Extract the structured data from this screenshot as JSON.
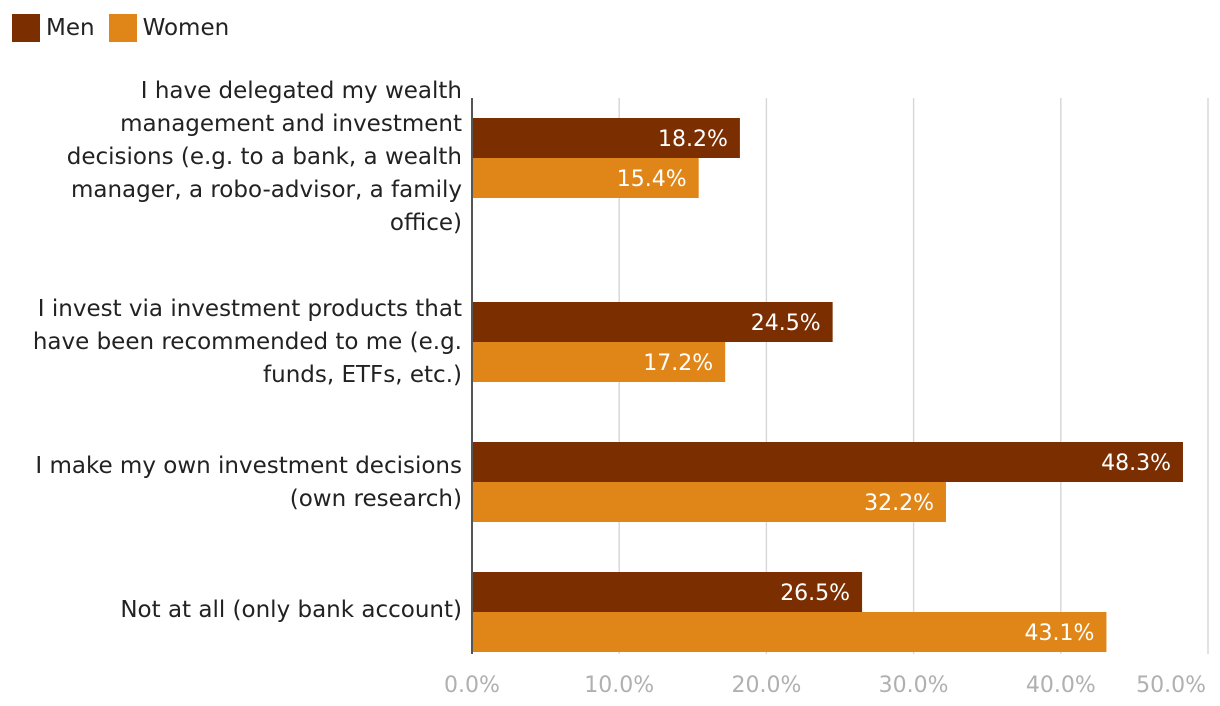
{
  "colors": {
    "men": "#7B2E00",
    "women": "#E08518",
    "grid": "#d9d9d9",
    "axis": "#555555",
    "tick": "#b0b0b0"
  },
  "legend": [
    {
      "name": "Men",
      "color": "#7B2E00"
    },
    {
      "name": "Women",
      "color": "#E08518"
    }
  ],
  "chart_data": {
    "type": "bar",
    "orientation": "horizontal",
    "categories": [
      "I have delegated my wealth management and investment decisions (e.g. to a bank, a wealth manager, a robo-advisor, a family office)",
      "I invest via investment products that have been recommended to me (e.g. funds, ETFs, etc.)",
      "I make my own investment decisions (own research)",
      "Not at all (only bank account)"
    ],
    "category_lines": [
      [
        "I have delegated my wealth",
        "management and investment",
        "decisions (e.g. to a bank, a wealth",
        "manager, a robo-advisor, a family",
        "office)"
      ],
      [
        "I invest via investment products that",
        "have been recommended to me (e.g.",
        "funds, ETFs, etc.)"
      ],
      [
        "I make my own investment decisions",
        "(own research)"
      ],
      [
        "Not at all (only bank account)"
      ]
    ],
    "series": [
      {
        "name": "Men",
        "values": [
          18.2,
          24.5,
          48.3,
          26.5
        ],
        "labels": [
          "18.2%",
          "24.5%",
          "48.3%",
          "26.5%"
        ]
      },
      {
        "name": "Women",
        "values": [
          15.4,
          17.2,
          32.2,
          43.1
        ],
        "labels": [
          "15.4%",
          "17.2%",
          "32.2%",
          "43.1%"
        ]
      }
    ],
    "xlim": [
      0,
      50
    ],
    "ticks": [
      0,
      10,
      20,
      30,
      40,
      50
    ],
    "tick_labels": [
      "0.0%",
      "10.0%",
      "20.0%",
      "30.0%",
      "40.0%",
      "50.0%"
    ],
    "title": "",
    "xlabel": "",
    "ylabel": "",
    "grid": true,
    "legend_position": "top-left"
  }
}
